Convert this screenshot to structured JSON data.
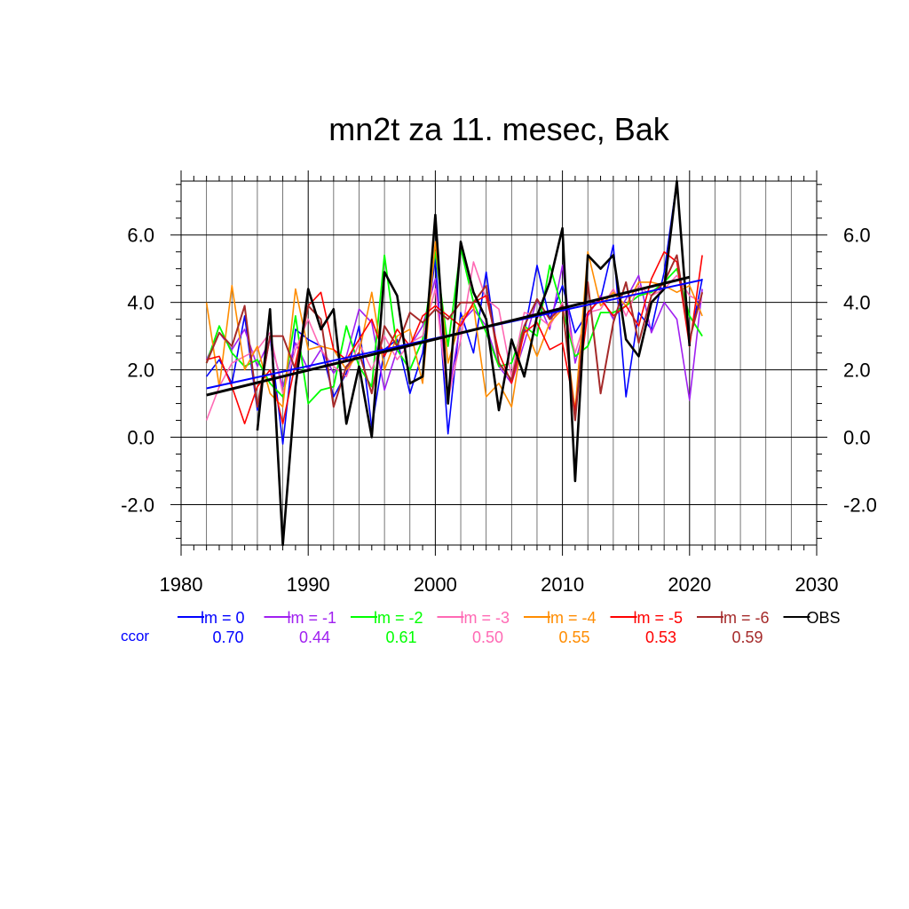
{
  "chart_data": {
    "type": "line",
    "title": "mn2t za 11. mesec, Bak",
    "xlabel": "",
    "ylabel": "",
    "xlim": [
      1980,
      2030
    ],
    "ylim": [
      -3.2,
      7.6
    ],
    "x_ticks": [
      1980,
      1990,
      2000,
      2010,
      2020,
      2030
    ],
    "x_tick_labels": [
      "1980",
      "1990",
      "2000",
      "2010",
      "2020",
      "2030"
    ],
    "y_ticks": [
      -2,
      0,
      2,
      4,
      6
    ],
    "y_tick_labels": [
      "-2.0",
      "0.0",
      "2.0",
      "4.0",
      "6.0"
    ],
    "grid": true,
    "legend_position": "bottom",
    "ccor_label": "ccor",
    "ccor_color": "#0000ff",
    "years": [
      1982,
      1983,
      1984,
      1985,
      1986,
      1987,
      1988,
      1989,
      1990,
      1991,
      1992,
      1993,
      1994,
      1995,
      1996,
      1997,
      1998,
      1999,
      2000,
      2001,
      2002,
      2003,
      2004,
      2005,
      2006,
      2007,
      2008,
      2009,
      2010,
      2011,
      2012,
      2013,
      2014,
      2015,
      2016,
      2017,
      2018,
      2019,
      2020,
      2021
    ],
    "series": [
      {
        "name": "lm = 0",
        "color": "#0000ff",
        "width": 1.6,
        "ccor": "0.70",
        "values": [
          1.8,
          2.3,
          1.6,
          3.6,
          0.8,
          3.0,
          -0.2,
          3.2,
          2.9,
          2.7,
          1.2,
          1.9,
          3.3,
          0.3,
          2.6,
          2.9,
          1.3,
          2.5,
          5.3,
          0.1,
          3.7,
          2.5,
          4.9,
          2.2,
          1.7,
          3.1,
          5.1,
          3.5,
          4.5,
          3.1,
          3.7,
          4.1,
          5.7,
          1.2,
          3.7,
          3.2,
          4.9,
          7.6,
          2.8,
          4.7
        ],
        "trend": [
          1.45,
          4.67
        ]
      },
      {
        "name": "lm = -1",
        "color": "#a020f0",
        "width": 1.6,
        "ccor": "0.44",
        "values": [
          2.3,
          3.1,
          2.6,
          3.2,
          2.1,
          2.9,
          1.5,
          2.8,
          2.0,
          2.6,
          1.9,
          2.4,
          3.8,
          3.4,
          1.4,
          2.6,
          2.7,
          3.3,
          4.7,
          1.2,
          3.4,
          3.8,
          3.3,
          2.1,
          1.6,
          2.8,
          4.1,
          3.2,
          5.1,
          2.2,
          3.6,
          4.2,
          3.5,
          4.1,
          4.8,
          3.1,
          4.0,
          3.5,
          1.1,
          4.4
        ]
      },
      {
        "name": "lm = -2",
        "color": "#00ff00",
        "width": 1.8,
        "ccor": "0.61",
        "values": [
          2.2,
          3.3,
          2.5,
          2.1,
          2.3,
          1.6,
          1.2,
          3.6,
          1.0,
          1.4,
          1.5,
          3.3,
          2.1,
          1.5,
          5.4,
          2.6,
          2.0,
          2.9,
          5.5,
          2.7,
          5.6,
          4.0,
          3.1,
          2.1,
          2.2,
          3.3,
          3.0,
          5.1,
          3.8,
          2.4,
          2.7,
          3.7,
          3.7,
          3.9,
          4.2,
          4.3,
          4.6,
          5.0,
          3.6,
          3.0
        ]
      },
      {
        "name": "lm = -3",
        "color": "#ff69b4",
        "width": 1.6,
        "ccor": "0.50",
        "values": [
          0.5,
          1.5,
          2.2,
          2.4,
          2.6,
          3.1,
          1.3,
          2.6,
          3.5,
          2.6,
          2.1,
          1.8,
          2.8,
          2.0,
          3.0,
          2.3,
          2.8,
          3.0,
          4.4,
          1.1,
          2.9,
          5.2,
          4.1,
          3.8,
          1.8,
          3.7,
          3.6,
          3.3,
          4.0,
          2.5,
          3.7,
          3.8,
          4.4,
          3.6,
          4.5,
          4.2,
          4.4,
          4.8,
          4.2,
          4.0
        ]
      },
      {
        "name": "lm = -4",
        "color": "#ff8c00",
        "width": 1.6,
        "ccor": "0.55",
        "values": [
          4.0,
          1.5,
          4.5,
          2.0,
          2.7,
          1.3,
          0.9,
          4.4,
          2.6,
          2.7,
          2.6,
          2.0,
          2.5,
          4.3,
          2.0,
          3.0,
          3.2,
          1.6,
          5.8,
          2.2,
          3.5,
          3.9,
          1.2,
          1.6,
          0.9,
          3.3,
          2.4,
          3.4,
          3.8,
          0.8,
          5.5,
          3.9,
          4.3,
          3.9,
          4.6,
          4.6,
          4.5,
          4.3,
          4.5,
          3.6
        ]
      },
      {
        "name": "lm = -5",
        "color": "#ff0000",
        "width": 1.6,
        "ccor": "0.53",
        "values": [
          2.3,
          2.4,
          1.5,
          0.4,
          1.5,
          2.0,
          0.4,
          2.2,
          3.9,
          4.3,
          2.6,
          2.3,
          2.9,
          3.5,
          2.4,
          3.2,
          2.7,
          3.6,
          3.9,
          3.6,
          3.3,
          4.0,
          4.2,
          2.5,
          1.6,
          3.1,
          3.4,
          2.6,
          2.8,
          0.8,
          3.7,
          4.1,
          3.6,
          3.9,
          3.3,
          4.7,
          5.5,
          5.2,
          2.7,
          5.4
        ]
      },
      {
        "name": "lm = -6",
        "color": "#a52a2a",
        "width": 2,
        "ccor": "0.59",
        "values": [
          2.2,
          3.1,
          2.7,
          3.9,
          0.9,
          3.0,
          3.0,
          2.0,
          3.9,
          3.5,
          0.9,
          2.1,
          2.5,
          1.3,
          3.3,
          2.7,
          3.7,
          3.4,
          3.8,
          3.5,
          4.0,
          4.0,
          4.5,
          2.2,
          1.7,
          3.3,
          4.1,
          3.5,
          3.9,
          0.5,
          4.6,
          1.3,
          3.4,
          4.6,
          2.8,
          4.2,
          4.6,
          5.4,
          2.9,
          4.3
        ]
      },
      {
        "name": "OBS",
        "color": "#000000",
        "width": 2.6,
        "ccor": "",
        "values": [
          null,
          null,
          null,
          null,
          0.2,
          3.8,
          -3.2,
          1.5,
          4.4,
          3.2,
          3.8,
          0.4,
          2.1,
          0.0,
          4.9,
          4.2,
          1.6,
          1.8,
          6.6,
          1.0,
          5.8,
          4.3,
          3.5,
          0.8,
          2.9,
          1.8,
          3.6,
          4.6,
          6.2,
          -1.3,
          5.4,
          5.0,
          5.4,
          2.9,
          2.4,
          4.0,
          4.4,
          7.6,
          2.7,
          null
        ],
        "trend": [
          1.25,
          4.75
        ]
      }
    ]
  }
}
